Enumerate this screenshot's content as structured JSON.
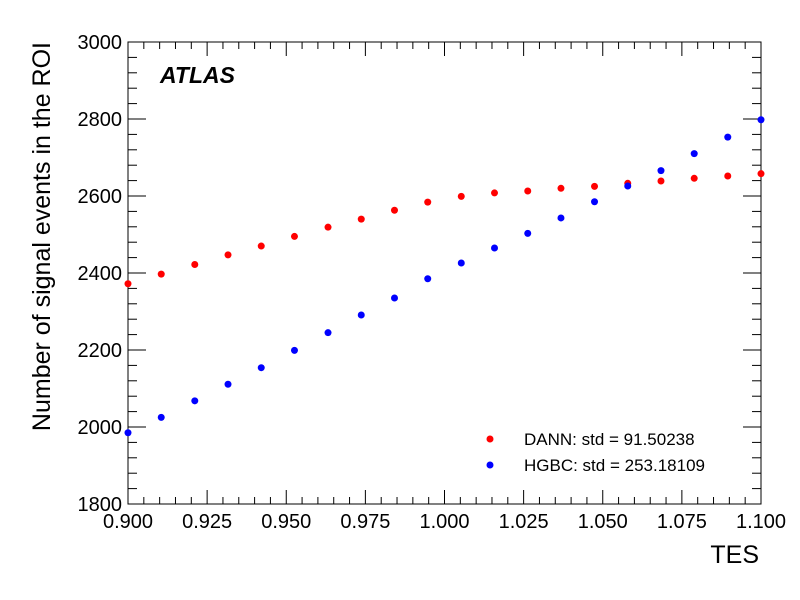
{
  "chart_data": {
    "type": "scatter",
    "experiment_label": "ATLAS",
    "xlabel": "TES",
    "ylabel": "Number of signal events in the ROI",
    "xlim": [
      0.9,
      1.1
    ],
    "ylim": [
      1800,
      3000
    ],
    "xticks": [
      "0.900",
      "0.925",
      "0.950",
      "0.975",
      "1.000",
      "1.025",
      "1.050",
      "1.075",
      "1.100"
    ],
    "yticks": [
      "1800",
      "2000",
      "2200",
      "2400",
      "2600",
      "2800",
      "3000"
    ],
    "legend_position": "bottom-right",
    "grid": false,
    "x": [
      0.9,
      0.9105,
      0.9211,
      0.9316,
      0.9421,
      0.9526,
      0.9632,
      0.9737,
      0.9842,
      0.9947,
      1.0053,
      1.0158,
      1.0263,
      1.0368,
      1.0474,
      1.0579,
      1.0684,
      1.0789,
      1.0895,
      1.1
    ],
    "series": [
      {
        "name": "DANN: std = 91.50238",
        "color": "#ff0000",
        "values": [
          2372,
          2397,
          2422,
          2447,
          2470,
          2495,
          2519,
          2540,
          2563,
          2584,
          2599,
          2608,
          2613,
          2620,
          2625,
          2633,
          2639,
          2646,
          2652,
          2658
        ]
      },
      {
        "name": "HGBC: std = 253.18109",
        "color": "#0000ff",
        "values": [
          1985,
          2025,
          2068,
          2111,
          2154,
          2199,
          2245,
          2291,
          2335,
          2385,
          2426,
          2465,
          2503,
          2543,
          2585,
          2626,
          2666,
          2710,
          2753,
          2798
        ]
      }
    ]
  }
}
